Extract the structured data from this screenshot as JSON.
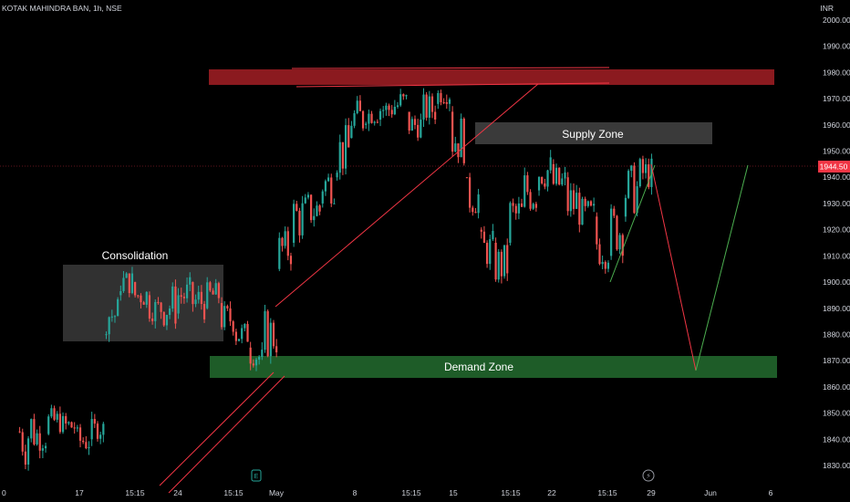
{
  "header": {
    "symbol_line": "KOTAK MAHINDRA BAN, 1h, NSE",
    "currency": "INR"
  },
  "price_label": "1944.50",
  "zones": {
    "consolidation": "Consolidation",
    "supply": "Supply Zone",
    "demand": "Demand Zone"
  },
  "colors": {
    "up": "#26a69a",
    "down": "#ef5350",
    "price_line": "#f23645",
    "resistance": "#8b1a1f",
    "demand": "#1e5c28",
    "supply": "#3a3a3a"
  },
  "chart_data": {
    "type": "candlestick",
    "y_axis": {
      "min": 1825,
      "max": 2005,
      "ticks": [
        1830.0,
        1840.0,
        1850.0,
        1860.0,
        1870.0,
        1880.0,
        1890.0,
        1900.0,
        1910.0,
        1920.0,
        1930.0,
        1940.0,
        1950.0,
        1960.0,
        1970.0,
        1980.0,
        1990.0,
        2000.0
      ]
    },
    "x_ticks": [
      "0",
      "17",
      "15:15",
      "24",
      "15:15",
      "May",
      "8",
      "15:15",
      "15",
      "15:15",
      "22",
      "15:15",
      "29",
      "Jun",
      "6"
    ],
    "last_price": 1944.5,
    "zones": [
      {
        "name": "Consolidation",
        "from": 1878,
        "to": 1907
      },
      {
        "name": "Supply Zone",
        "from": 1953,
        "to": 1961
      },
      {
        "name": "Demand Zone",
        "from": 1864,
        "to": 1872
      },
      {
        "name": "",
        "from": 1976,
        "to": 1982
      }
    ],
    "path": [
      [
        1828,
        1858
      ],
      [
        1835,
        1848
      ],
      [
        1842,
        1852
      ],
      [
        1840,
        1850
      ],
      [
        1834,
        1845
      ],
      [
        1840,
        1848
      ],
      [
        1880,
        1895
      ],
      [
        1895,
        1905
      ],
      [
        1890,
        1900
      ],
      [
        1885,
        1895
      ],
      [
        1882,
        1900
      ],
      [
        1888,
        1902
      ],
      [
        1885,
        1900
      ],
      [
        1890,
        1900
      ],
      [
        1880,
        1892
      ],
      [
        1875,
        1885
      ],
      [
        1868,
        1875
      ],
      [
        1870,
        1890
      ],
      [
        1905,
        1920
      ],
      [
        1915,
        1935
      ],
      [
        1920,
        1935
      ],
      [
        1930,
        1945
      ],
      [
        1940,
        1960
      ],
      [
        1955,
        1970
      ],
      [
        1960,
        1968
      ],
      [
        1962,
        1970
      ],
      [
        1960,
        1975
      ],
      [
        1955,
        1965
      ],
      [
        1960,
        1972
      ],
      [
        1968,
        1975
      ],
      [
        1945,
        1965
      ],
      [
        1925,
        1940
      ],
      [
        1905,
        1920
      ],
      [
        1898,
        1915
      ],
      [
        1915,
        1935
      ],
      [
        1925,
        1945
      ],
      [
        1935,
        1950
      ],
      [
        1930,
        1945
      ],
      [
        1920,
        1940
      ],
      [
        1918,
        1932
      ],
      [
        1905,
        1925
      ],
      [
        1910,
        1930
      ],
      [
        1925,
        1945
      ],
      [
        1935,
        1948
      ]
    ]
  }
}
